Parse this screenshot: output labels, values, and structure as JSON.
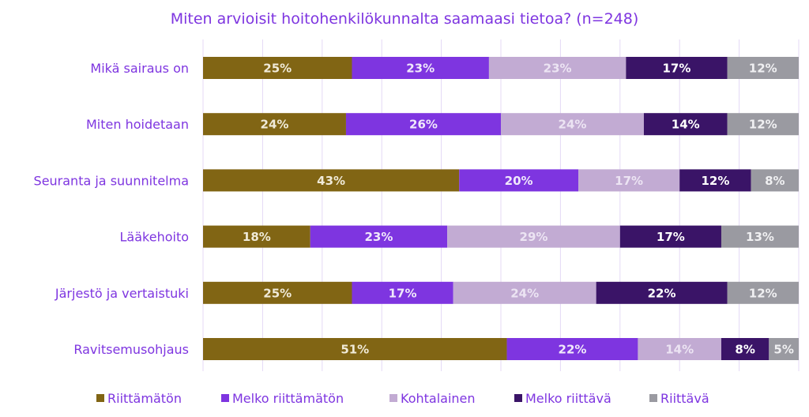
{
  "chart_data": {
    "type": "bar",
    "orientation": "horizontal",
    "stacked": true,
    "title": "Miten arvioisit hoitohenkilökunnalta saamaasi tietoa? (n=248)",
    "categories": [
      "Mikä sairaus on",
      "Miten hoidetaan",
      "Seuranta ja suunnitelma",
      "Lääkehoito",
      "Järjestö ja vertaistuki",
      "Ravitsemusohjaus"
    ],
    "series": [
      {
        "name": "Riittämätön",
        "color": "#816514",
        "label_color": "#f0ead8",
        "values": [
          25,
          24,
          43,
          18,
          25,
          51
        ]
      },
      {
        "name": "Melko riittämätön",
        "color": "#7e35e0",
        "label_color": "#f0e8fb",
        "values": [
          23,
          26,
          20,
          23,
          17,
          22
        ]
      },
      {
        "name": "Kohtalainen",
        "color": "#c2abd3",
        "label_color": "#ece4f3",
        "values": [
          23,
          24,
          17,
          29,
          24,
          14
        ]
      },
      {
        "name": "Melko riittävä",
        "color": "#3a1467",
        "label_color": "#ffffff",
        "values": [
          17,
          14,
          12,
          17,
          22,
          8
        ]
      },
      {
        "name": "Riittävä",
        "color": "#9a9aa1",
        "label_color": "#f0f0f2",
        "values": [
          12,
          12,
          8,
          13,
          12,
          5
        ]
      }
    ],
    "value_suffix": "%",
    "xlim": [
      0,
      100
    ],
    "grid": true,
    "grid_color": "#e4d8f5",
    "legend_position": "bottom"
  }
}
